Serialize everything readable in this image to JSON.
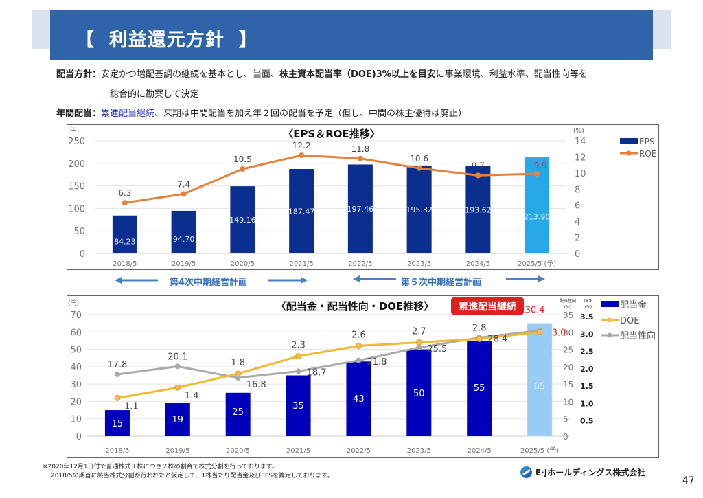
{
  "header": {
    "title": "【  利益還元方針  】"
  },
  "policy": {
    "line1_label": "配当方針：",
    "line1_pre": "安定かつ増配基調の継続を基本とし、当面、",
    "line1_bold": "株主資本配当率（DOE)3%以上を目安",
    "line1_post": "に事業環境、利益水準、配当性向等を",
    "line2": "総合的に勘案して決定",
    "line3_label": "年間配当：",
    "line3_blue": "累進配当継続",
    "line3_post": "、来期は中間配当を加え年２回の配当を予定（但し、中間の株主優待は廃止）"
  },
  "plans": {
    "plan4": "第4次中期経営計画",
    "plan5": "第５次中期経営計画"
  },
  "colors": {
    "eps_bar": "#0a2f8f",
    "eps_forecast": "#29a8e8",
    "roe": "#e8803a",
    "dividend_bar": "#0000bb",
    "dividend_forecast": "#99ccf5",
    "doe": "#f2b830",
    "payout": "#aaaaaa",
    "highlight_red": "#e02020",
    "title_band": "#2f64aa"
  },
  "chart_data": [
    {
      "type": "bar",
      "title": "〈EPS＆ROE推移〉",
      "categories": [
        "2018/5",
        "2019/5",
        "2020/5",
        "2021/5",
        "2022/5",
        "2023/5",
        "2024/5",
        "2025/5"
      ],
      "forecast_suffix": "(予)",
      "ylabel": "(円)",
      "ylim": [
        0,
        250
      ],
      "yticks": [
        0,
        50,
        100,
        150,
        200,
        250
      ],
      "y2label": "(%)",
      "y2lim": [
        0,
        14
      ],
      "y2ticks": [
        0,
        2,
        4,
        6,
        8,
        10,
        12,
        14
      ],
      "grid": true,
      "legend": "right",
      "series": [
        {
          "name": "EPS",
          "type": "bar",
          "axis": "left",
          "values": [
            84.23,
            94.7,
            149.16,
            187.47,
            197.46,
            195.32,
            193.62,
            213.9
          ],
          "labels": [
            "84.23",
            "94.70",
            "149.16",
            "187.47",
            "197.46",
            "195.32",
            "193.62",
            "213.90"
          ]
        },
        {
          "name": "ROE",
          "type": "line",
          "axis": "right",
          "values": [
            6.3,
            7.4,
            10.5,
            12.2,
            11.8,
            10.6,
            9.7,
            9.9
          ],
          "labels": [
            "6.3",
            "7.4",
            "10.5",
            "12.2",
            "11.8",
            "10.6",
            "9.7",
            "9.9"
          ]
        }
      ]
    },
    {
      "type": "bar",
      "title": "〈配当金・配当性向・DOE推移〉",
      "badge": "累進配当継続",
      "categories": [
        "2018/5",
        "2019/5",
        "2020/5",
        "2021/5",
        "2022/5",
        "2023/5",
        "2024/5",
        "2025/5"
      ],
      "forecast_suffix": "(予)",
      "ylabel": "(円)",
      "ylim": [
        0,
        70
      ],
      "yticks": [
        0,
        10,
        20,
        30,
        40,
        50,
        60,
        70
      ],
      "y2label": "配当性向\n(%)",
      "y2lim": [
        0,
        35
      ],
      "y2ticks": [
        0,
        5,
        10,
        15,
        20,
        25,
        30,
        35
      ],
      "y3label": "DOE\n(%)",
      "y3lim": [
        0,
        3.5
      ],
      "y3ticks": [
        "0.5",
        "1.0",
        "1.5",
        "2.0",
        "2.5",
        "3.0",
        "3.5"
      ],
      "grid": true,
      "legend": "right",
      "series": [
        {
          "name": "配当金",
          "type": "bar",
          "axis": "left",
          "values": [
            15,
            19,
            25,
            35,
            43,
            50,
            55,
            65
          ],
          "labels": [
            "15",
            "19",
            "25",
            "35",
            "43",
            "50",
            "55",
            "65"
          ]
        },
        {
          "name": "DOE",
          "type": "line",
          "axis": "doe",
          "values": [
            1.1,
            1.4,
            1.8,
            2.3,
            2.6,
            2.7,
            2.8,
            3.0
          ],
          "labels": [
            "1.1",
            "1.4",
            "1.8",
            "2.3",
            "2.6",
            "2.7",
            "2.8",
            "3.0"
          ]
        },
        {
          "name": "配当性向",
          "type": "line",
          "axis": "right",
          "values": [
            17.8,
            20.1,
            16.8,
            18.7,
            21.8,
            25.5,
            28.4,
            30.4
          ],
          "labels": [
            "17.8",
            "20.1",
            "16.8",
            "18.7",
            "21.8",
            "25.5",
            "28.4",
            "30.4"
          ]
        }
      ]
    }
  ],
  "footnotes": {
    "line1": "※2020年12月1日付で普通株式１株につき２株の割合で株式分割を行っております。",
    "line2": "2018/5の期首に該当株式分割が行われたと仮定して、1株当たり配当金及びEPSを算定しております。"
  },
  "company": "E·Jホールディングス株式会社",
  "page_number": "47"
}
